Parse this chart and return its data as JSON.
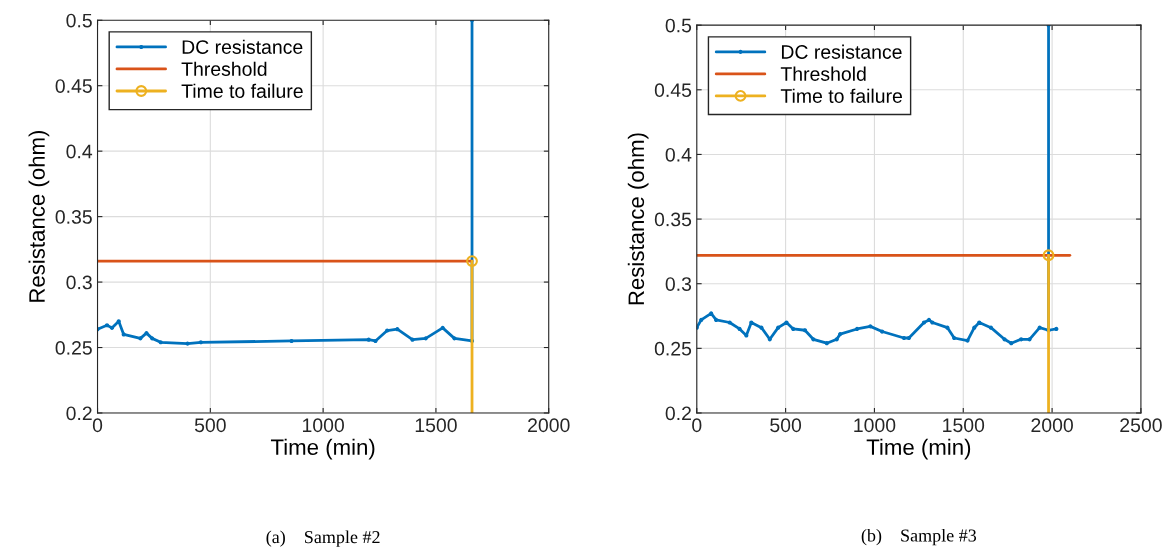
{
  "chart_data": [
    {
      "type": "line",
      "xlabel": "Time (min)",
      "ylabel": "Resistance (ohm)",
      "xlim": [
        0,
        2000
      ],
      "xticks": [
        0,
        500,
        1000,
        1500,
        2000
      ],
      "ylim": [
        0.2,
        0.5
      ],
      "yticks": [
        0.2,
        0.25,
        0.3,
        0.35,
        0.4,
        0.45,
        0.5
      ],
      "grid": true,
      "legend": "top left",
      "annotations": [
        "(a)    Sample #2"
      ],
      "series": [
        {
          "name": "DC resistance",
          "color": "#0072bd",
          "marker": "circle",
          "x": [
            0,
            42,
            64,
            94,
            116,
            190,
            217,
            242,
            280,
            399,
            458,
            860,
            1202,
            1232,
            1284,
            1329,
            1396,
            1455,
            1530,
            1582,
            1660,
            1660
          ],
          "values": [
            0.264,
            0.267,
            0.265,
            0.27,
            0.26,
            0.257,
            0.261,
            0.257,
            0.254,
            0.253,
            0.254,
            0.255,
            0.256,
            0.255,
            0.263,
            0.264,
            0.256,
            0.257,
            0.265,
            0.257,
            0.255,
            0.5
          ]
        },
        {
          "name": "Threshold",
          "color": "#d95319",
          "marker": "none",
          "x": [
            0,
            1660
          ],
          "values": [
            0.316,
            0.316
          ]
        },
        {
          "name": "Time to failure",
          "color": "#edb120",
          "marker": "circle",
          "x": [
            1660,
            1660
          ],
          "values": [
            0.316,
            0.2
          ]
        }
      ]
    },
    {
      "type": "line",
      "xlabel": "Time (min)",
      "ylabel": "Resistance (ohm)",
      "xlim": [
        0,
        2500
      ],
      "xticks": [
        0,
        500,
        1000,
        1500,
        2000,
        2500
      ],
      "ylim": [
        0.2,
        0.5
      ],
      "yticks": [
        0.2,
        0.25,
        0.3,
        0.35,
        0.4,
        0.45,
        0.5
      ],
      "grid": true,
      "legend": "top left",
      "annotations": [
        "(b)    Sample #3"
      ],
      "series": [
        {
          "name": "DC resistance",
          "color": "#0072bd",
          "marker": "circle",
          "x": [
            0,
            25,
            81,
            109,
            185,
            241,
            279,
            307,
            364,
            411,
            458,
            505,
            543,
            609,
            656,
            732,
            788,
            807,
            902,
            977,
            1043,
            1166,
            1194,
            1279,
            1307,
            1326,
            1411,
            1449,
            1524,
            1562,
            1590,
            1656,
            1732,
            1770,
            1826,
            1873,
            1930,
            1980,
            1980,
            1980,
            2024
          ],
          "values": [
            0.266,
            0.272,
            0.277,
            0.272,
            0.27,
            0.265,
            0.26,
            0.27,
            0.266,
            0.257,
            0.266,
            0.27,
            0.265,
            0.264,
            0.257,
            0.254,
            0.257,
            0.261,
            0.265,
            0.267,
            0.263,
            0.258,
            0.258,
            0.27,
            0.272,
            0.27,
            0.266,
            0.258,
            0.256,
            0.266,
            0.27,
            0.266,
            0.257,
            0.254,
            0.257,
            0.257,
            0.266,
            0.264,
            0.5,
            0.264,
            0.265
          ]
        },
        {
          "name": "Threshold",
          "color": "#d95319",
          "marker": "none",
          "x": [
            0,
            2100
          ],
          "values": [
            0.322,
            0.322
          ]
        },
        {
          "name": "Time to failure",
          "color": "#edb120",
          "marker": "circle",
          "x": [
            1980,
            1980
          ],
          "values": [
            0.322,
            0.2
          ]
        }
      ]
    }
  ]
}
